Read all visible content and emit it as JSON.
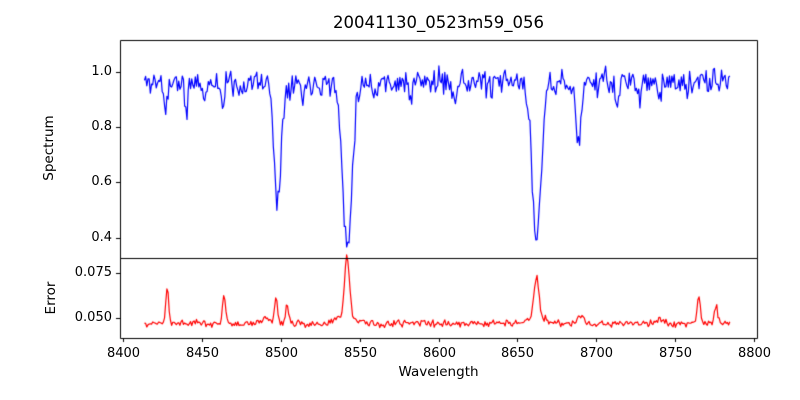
{
  "figure": {
    "title": "20041130_0523m59_056",
    "xlabel": "Wavelength",
    "ylabel_top": "Spectrum",
    "ylabel_bottom": "Error",
    "background": "#ffffff",
    "spine_color": "#000000",
    "text_color": "#000000"
  },
  "chart_data": [
    {
      "type": "line",
      "series_name": "spectrum",
      "description": "Normalized stellar spectrum, blue line, noisy continuum near 1.0 with Ca II triplet absorption lines",
      "color": "#0000ff",
      "ylabel": "Spectrum",
      "xlim": [
        8398,
        8802
      ],
      "ylim": [
        0.326,
        1.115
      ],
      "yticks": [
        0.4,
        0.6,
        0.8,
        1.0
      ],
      "ytick_labels": [
        "0.4",
        "0.6",
        "0.8",
        "1.0"
      ],
      "x_start": 8413.5,
      "x_step": 0.75,
      "n_points": 496,
      "baseline": 0.962,
      "noise_amplitude": 0.045,
      "noise_seed": 11,
      "features": [
        {
          "center": 8427.0,
          "amplitude": -0.1,
          "sigma": 1.0
        },
        {
          "center": 8440.0,
          "amplitude": -0.13,
          "sigma": 0.9
        },
        {
          "center": 8451.0,
          "amplitude": -0.08,
          "sigma": 0.8
        },
        {
          "center": 8463.0,
          "amplitude": -0.11,
          "sigma": 0.8
        },
        {
          "center": 8475.0,
          "amplitude": -0.05,
          "sigma": 0.8
        },
        {
          "center": 8498.0,
          "amplitude": -0.43,
          "sigma": 2.2
        },
        {
          "center": 8514.0,
          "amplitude": -0.06,
          "sigma": 1.0
        },
        {
          "center": 8542.1,
          "amplitude": -0.585,
          "sigma": 3.0
        },
        {
          "center": 8560.0,
          "amplitude": -0.04,
          "sigma": 1.0
        },
        {
          "center": 8582.0,
          "amplitude": -0.06,
          "sigma": 1.0
        },
        {
          "center": 8610.0,
          "amplitude": -0.05,
          "sigma": 0.9
        },
        {
          "center": 8634.0,
          "amplitude": -0.05,
          "sigma": 0.9
        },
        {
          "center": 8662.1,
          "amplitude": -0.565,
          "sigma": 2.8
        },
        {
          "center": 8674.0,
          "amplitude": -0.06,
          "sigma": 0.9
        },
        {
          "center": 8688.6,
          "amplitude": -0.225,
          "sigma": 1.6
        },
        {
          "center": 8713.0,
          "amplitude": -0.1,
          "sigma": 0.9
        },
        {
          "center": 8727.0,
          "amplitude": -0.05,
          "sigma": 0.9
        },
        {
          "center": 8740.0,
          "amplitude": -0.05,
          "sigma": 0.9
        },
        {
          "center": 8757.0,
          "amplitude": -0.05,
          "sigma": 0.9
        }
      ]
    },
    {
      "type": "line",
      "series_name": "error",
      "description": "Error spectrum, red line, baseline ~0.047 with spikes at absorption-line wavelengths",
      "color": "#ff0000",
      "ylabel": "Error",
      "xlabel": "Wavelength",
      "xlim": [
        8398,
        8802
      ],
      "ylim": [
        0.0386,
        0.0837
      ],
      "yticks": [
        0.05,
        0.075
      ],
      "ytick_labels": [
        "0.050",
        "0.075"
      ],
      "xticks": [
        8400,
        8450,
        8500,
        8550,
        8600,
        8650,
        8700,
        8750,
        8800
      ],
      "xtick_labels": [
        "8400",
        "8450",
        "8500",
        "8550",
        "8600",
        "8650",
        "8700",
        "8750",
        "8800"
      ],
      "x_start": 8413.5,
      "x_step": 0.75,
      "n_points": 496,
      "baseline": 0.0468,
      "noise_amplitude": 0.002,
      "noise_seed": 99,
      "features": [
        {
          "center": 8428.0,
          "amplitude": 0.02,
          "sigma": 0.9
        },
        {
          "center": 8464.0,
          "amplitude": 0.016,
          "sigma": 0.9
        },
        {
          "center": 8490.0,
          "amplitude": 0.004,
          "sigma": 1.5
        },
        {
          "center": 8497.0,
          "amplitude": 0.016,
          "sigma": 0.9
        },
        {
          "center": 8504.0,
          "amplitude": 0.011,
          "sigma": 0.8
        },
        {
          "center": 8542.0,
          "amplitude": 0.033,
          "sigma": 1.5
        },
        {
          "center": 8542.0,
          "amplitude": 0.005,
          "sigma": 5.0
        },
        {
          "center": 8662.0,
          "amplitude": 0.022,
          "sigma": 1.5
        },
        {
          "center": 8662.0,
          "amplitude": 0.004,
          "sigma": 5.0
        },
        {
          "center": 8690.0,
          "amplitude": 0.004,
          "sigma": 2.0
        },
        {
          "center": 8740.0,
          "amplitude": 0.003,
          "sigma": 1.5
        },
        {
          "center": 8765.0,
          "amplitude": 0.016,
          "sigma": 1.0
        },
        {
          "center": 8776.0,
          "amplitude": 0.011,
          "sigma": 0.9
        }
      ]
    }
  ]
}
